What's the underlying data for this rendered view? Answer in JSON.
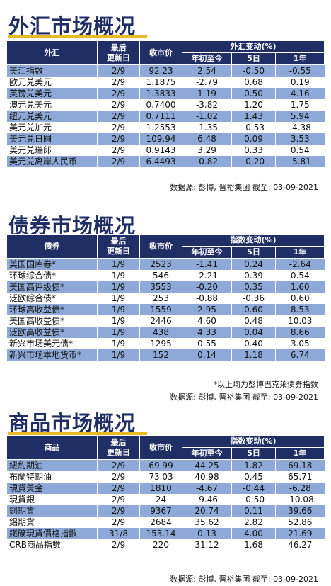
{
  "fx": {
    "title": "外汇市场概况",
    "headers": {
      "name": "外汇",
      "date": "最后\n更新日",
      "price": "收市价",
      "change": "外汇变动(%)",
      "ytd": "年初至今",
      "d5": "5日",
      "y1": "1年"
    },
    "rows": [
      [
        "美汇指数",
        "2/9",
        "92.23",
        "2.54",
        "-0.50",
        "-0.55"
      ],
      [
        "欧元兑美元",
        "2/9",
        "1.1875",
        "-2.79",
        "0.68",
        "0.19"
      ],
      [
        "英镑兑美元",
        "2/9",
        "1.3833",
        "1.19",
        "0.50",
        "4.16"
      ],
      [
        "澳元兑美元",
        "2/9",
        "0.7400",
        "-3.82",
        "1.20",
        "1.75"
      ],
      [
        "纽元兑美元",
        "2/9",
        "0.7111",
        "-1.02",
        "1.43",
        "5.94"
      ],
      [
        "美元兑加元",
        "2/9",
        "1.2553",
        "-1.35",
        "-0.53",
        "-4.38"
      ],
      [
        "美元兑日圆",
        "2/9",
        "109.94",
        "6.48",
        "0.09",
        "3.53"
      ],
      [
        "美元兑瑞郎",
        "2/9",
        "0.9143",
        "3.29",
        "0.33",
        "0.54"
      ],
      [
        "美元兑离岸人民币",
        "2/9",
        "6.4493",
        "-0.82",
        "-0.20",
        "-5.81"
      ]
    ],
    "source": "数据源: 彭博, 晋裕集团 截至: 03-09-2021"
  },
  "bonds": {
    "title": "债券市场概况",
    "headers": {
      "name": "债券",
      "date": "最后\n更新日",
      "price": "收市价",
      "change": "指数变动(%)",
      "ytd": "年初至今",
      "d5": "5日",
      "y1": "1年"
    },
    "rows": [
      [
        "美国国库券*",
        "1/9",
        "2523",
        "-1.41",
        "0.24",
        "-2.64"
      ],
      [
        "环球综合债*",
        "1/9",
        "546",
        "-2.21",
        "0.39",
        "0.54"
      ],
      [
        "美国高评级债*",
        "1/9",
        "3553",
        "-0.20",
        "0.35",
        "1.60"
      ],
      [
        "泛欧综合债*",
        "1/9",
        "253",
        "-0.88",
        "-0.36",
        "0.60"
      ],
      [
        "环球高收益债*",
        "1/9",
        "1559",
        "2.95",
        "0.60",
        "8.53"
      ],
      [
        "美国高收益债*",
        "1/9",
        "2446",
        "4.60",
        "0.48",
        "10.03"
      ],
      [
        "泛欧高收益债*",
        "1/9",
        "438",
        "4.33",
        "0.04",
        "8.66"
      ],
      [
        "新兴市场美元债*",
        "1/9",
        "1295",
        "0.55",
        "0.40",
        "3.05"
      ],
      [
        "新兴市场本地货币*",
        "1/9",
        "152",
        "0.14",
        "1.18",
        "6.74"
      ]
    ],
    "note": "*以上均为彭博巴克莱债券指数",
    "source": "数据源: 彭博, 晋裕集团 截至: 03-09-2021"
  },
  "commodities": {
    "title": "商品市场概况",
    "headers": {
      "name": "商品",
      "date": "最后\n更新日",
      "price": "收市价",
      "change": "指数变动(%)",
      "ytd": "年初至今",
      "d5": "5日",
      "y1": "1年"
    },
    "rows": [
      [
        "紐約期油",
        "2/9",
        "69.99",
        "44.25",
        "1.82",
        "69.18"
      ],
      [
        "布蘭特期油",
        "2/9",
        "73.03",
        "40.98",
        "0.45",
        "65.71"
      ],
      [
        "現貨黃金",
        "2/9",
        "1810",
        "-4.67",
        "-0.44",
        "-6.28"
      ],
      [
        "現貨銀",
        "2/9",
        "24",
        "-9.46",
        "-0.50",
        "-10.08"
      ],
      [
        "銅期貨",
        "2/9",
        "9367",
        "20.74",
        "0.11",
        "39.66"
      ],
      [
        "鋁期貨",
        "2/9",
        "2684",
        "35.62",
        "2.82",
        "52.86"
      ],
      [
        "鐵礦現貨價格指數",
        "31/8",
        "153.14",
        "0.13",
        "4.00",
        "21.69"
      ],
      [
        "CRB商品指數",
        "2/9",
        "220",
        "31.12",
        "1.68",
        "46.27"
      ]
    ],
    "source": "数据源: 彭博, 晋裕集团 截至: 03-09-2021"
  },
  "colors": {
    "header": "#1f2f66",
    "stripe": "#8ea9d8",
    "accent": "#e8b923"
  }
}
